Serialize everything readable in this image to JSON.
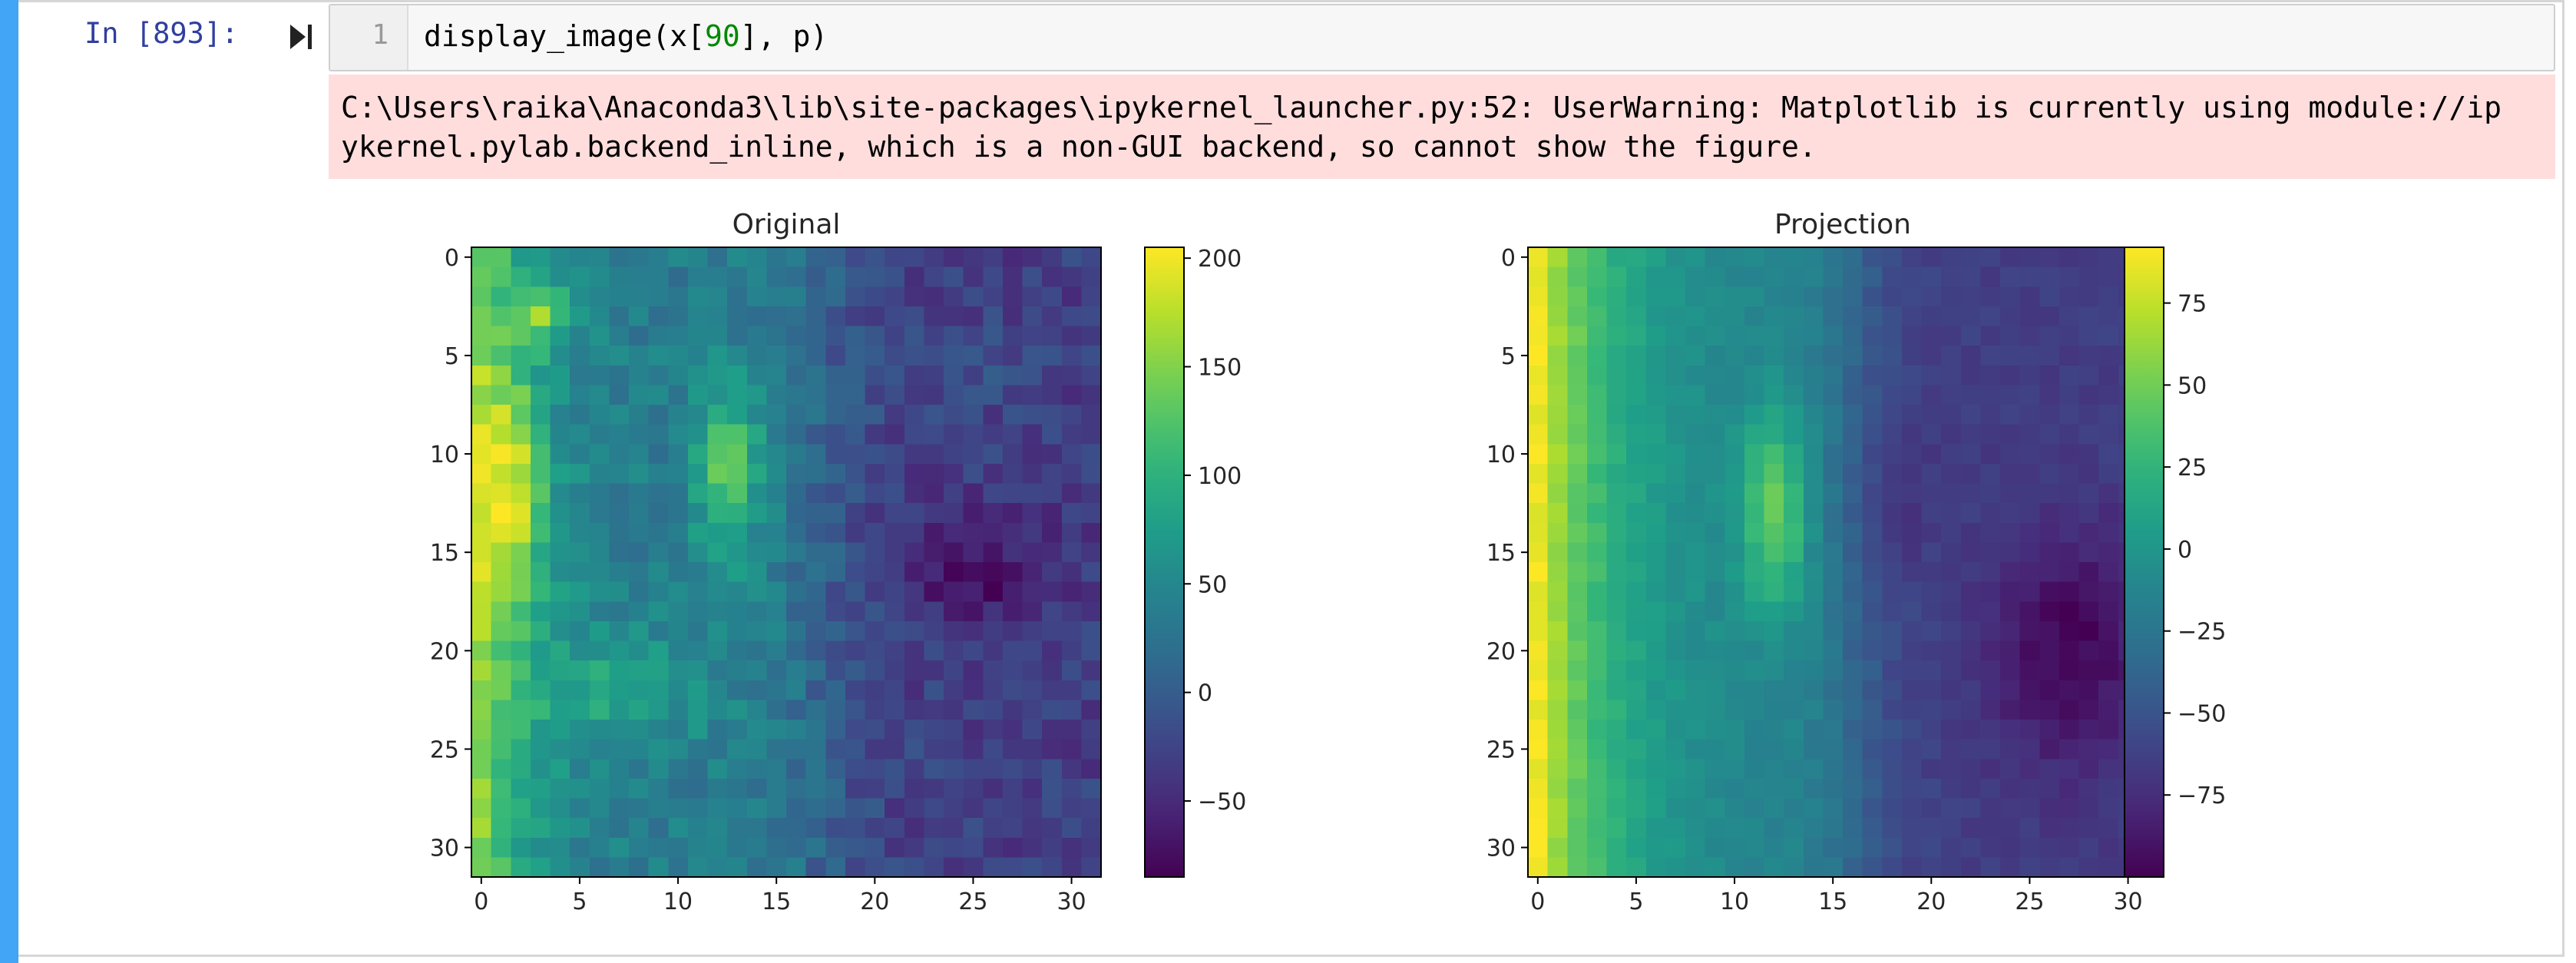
{
  "cell": {
    "prompt": "In [893]:",
    "line_number": "1",
    "code": {
      "prefix": "display_image(x[",
      "index": "90",
      "suffix": "], p)"
    },
    "stderr_lines": [
      "C:\\Users\\raika\\Anaconda3\\lib\\site-packages\\ipykernel_launcher.py:52: UserWarning: Matplotlib is currently using module://ip",
      "ykernel.pylab.backend_inline, which is a non-GUI backend, so cannot show the figure."
    ],
    "run_icon": "run-cell-icon",
    "accent_color": "#42a5f5",
    "prompt_color": "#303f9f",
    "stderr_bg": "#ffdddd"
  },
  "chart_data": [
    {
      "type": "heatmap",
      "title": "Original",
      "x_ticks": [
        0,
        5,
        10,
        15,
        20,
        25,
        30
      ],
      "y_ticks": [
        0,
        5,
        10,
        15,
        20,
        25,
        30
      ],
      "grid_size": [
        32,
        32
      ],
      "colormap": "viridis",
      "colorbar": {
        "min": -85,
        "max": 205,
        "ticks": [
          200,
          150,
          100,
          50,
          0,
          -50
        ]
      }
    },
    {
      "type": "heatmap",
      "title": "Projection",
      "x_ticks": [
        0,
        5,
        10,
        15,
        20,
        25,
        30
      ],
      "y_ticks": [
        0,
        5,
        10,
        15,
        20,
        25,
        30
      ],
      "grid_size": [
        32,
        32
      ],
      "colormap": "viridis",
      "colorbar": {
        "min": -100,
        "max": 92,
        "ticks": [
          75,
          50,
          25,
          0,
          -25,
          -50,
          -75
        ]
      }
    }
  ]
}
